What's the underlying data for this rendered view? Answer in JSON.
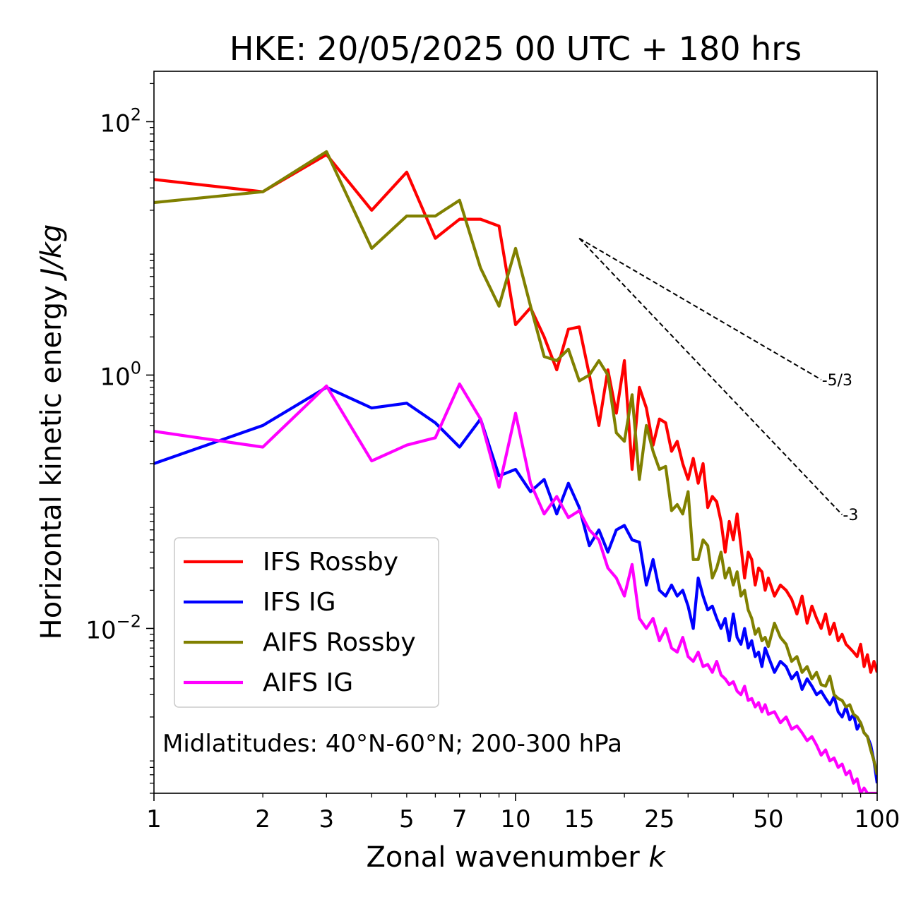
{
  "chart_data": {
    "type": "line",
    "title": "HKE: 20/05/2025 00 UTC + 180 hrs",
    "xlabel": "Zonal wavenumber ",
    "xlabel_italic": "k",
    "ylabel": "Horizontal kinetic energy ",
    "ylabel_italic": "J/kg",
    "xscale": "log",
    "yscale": "log",
    "xlim": [
      1,
      100
    ],
    "ylim": [
      0.0005,
      250
    ],
    "xticks": [
      1,
      2,
      3,
      5,
      7,
      10,
      15,
      25,
      50,
      100
    ],
    "xtick_labels": [
      "1",
      "2",
      "3",
      "5",
      "7",
      "10",
      "15",
      "25",
      "50",
      "100"
    ],
    "yticks": [
      0.01,
      1,
      100
    ],
    "ytick_labels": [
      {
        "base": "10",
        "exp": "−2"
      },
      {
        "base": "10",
        "exp": "0"
      },
      {
        "base": "10",
        "exp": "2"
      }
    ],
    "grid": false,
    "legend_placement": "lower-left",
    "annotation": "Midlatitudes: 40°N-60°N; 200-300 hPa",
    "reference_slopes": [
      {
        "label": "-5/3",
        "slope": -1.6667,
        "k_start": 15,
        "k_end": 70,
        "e_start": 12
      },
      {
        "label": "-3",
        "slope": -3,
        "k_start": 15,
        "k_end": 80,
        "e_start": 12
      }
    ],
    "series": [
      {
        "name": "IFS Rossby",
        "color": "#ff0000",
        "x": [
          1,
          2,
          3,
          4,
          5,
          6,
          7,
          8,
          9,
          10,
          11,
          12,
          13,
          14,
          15,
          16,
          17,
          18,
          19,
          20,
          21,
          22,
          23,
          24,
          25,
          26,
          27,
          28,
          29,
          30,
          31,
          32,
          33,
          34,
          35,
          36,
          37,
          38,
          39,
          40,
          41,
          42,
          43,
          44,
          45,
          46,
          47,
          48,
          49,
          50,
          52,
          54,
          56,
          58,
          60,
          62,
          64,
          66,
          68,
          70,
          72,
          74,
          76,
          78,
          80,
          82,
          84,
          86,
          88,
          90,
          92,
          94,
          96,
          98,
          100
        ],
        "values": [
          35,
          28,
          55,
          20,
          40,
          12,
          17,
          17,
          15,
          2.5,
          3.4,
          2.0,
          1.1,
          2.3,
          2.4,
          1.0,
          0.4,
          1.1,
          0.5,
          1.3,
          0.18,
          0.8,
          0.55,
          0.28,
          0.45,
          0.42,
          0.25,
          0.3,
          0.2,
          0.15,
          0.22,
          0.14,
          0.2,
          0.09,
          0.11,
          0.1,
          0.07,
          0.04,
          0.07,
          0.05,
          0.08,
          0.045,
          0.025,
          0.04,
          0.035,
          0.022,
          0.03,
          0.028,
          0.02,
          0.025,
          0.018,
          0.022,
          0.02,
          0.017,
          0.013,
          0.018,
          0.011,
          0.015,
          0.012,
          0.01,
          0.013,
          0.009,
          0.011,
          0.008,
          0.009,
          0.0075,
          0.007,
          0.0065,
          0.006,
          0.0075,
          0.005,
          0.0062,
          0.0045,
          0.0055,
          0.0045
        ]
      },
      {
        "name": "IFS IG",
        "color": "#0000ff",
        "x": [
          1,
          2,
          3,
          4,
          5,
          6,
          7,
          8,
          9,
          10,
          11,
          12,
          13,
          14,
          15,
          16,
          17,
          18,
          19,
          20,
          21,
          22,
          23,
          24,
          25,
          26,
          27,
          28,
          29,
          30,
          31,
          32,
          33,
          34,
          35,
          36,
          37,
          38,
          39,
          40,
          41,
          42,
          43,
          44,
          45,
          46,
          47,
          48,
          49,
          50,
          52,
          54,
          56,
          58,
          60,
          62,
          64,
          66,
          68,
          70,
          72,
          74,
          76,
          78,
          80,
          82,
          84,
          86,
          88,
          90,
          92,
          94,
          96,
          98,
          100
        ],
        "values": [
          0.2,
          0.4,
          0.8,
          0.55,
          0.6,
          0.42,
          0.27,
          0.45,
          0.16,
          0.18,
          0.12,
          0.15,
          0.08,
          0.14,
          0.09,
          0.045,
          0.06,
          0.04,
          0.06,
          0.065,
          0.05,
          0.048,
          0.022,
          0.035,
          0.02,
          0.018,
          0.022,
          0.018,
          0.02,
          0.015,
          0.01,
          0.025,
          0.018,
          0.014,
          0.015,
          0.012,
          0.01,
          0.012,
          0.008,
          0.013,
          0.0085,
          0.0075,
          0.01,
          0.007,
          0.008,
          0.006,
          0.0065,
          0.005,
          0.007,
          0.006,
          0.0045,
          0.0055,
          0.005,
          0.004,
          0.0045,
          0.0033,
          0.004,
          0.0035,
          0.003,
          0.0032,
          0.0028,
          0.0025,
          0.0029,
          0.0022,
          0.002,
          0.0024,
          0.0019,
          0.0021,
          0.0016,
          0.0018,
          0.0015,
          0.0014,
          0.0012,
          0.0009,
          0.0006
        ]
      },
      {
        "name": "AIFS Rossby",
        "color": "#808000",
        "x": [
          1,
          2,
          3,
          4,
          5,
          6,
          7,
          8,
          9,
          10,
          11,
          12,
          13,
          14,
          15,
          16,
          17,
          18,
          19,
          20,
          21,
          22,
          23,
          24,
          25,
          26,
          27,
          28,
          29,
          30,
          31,
          32,
          33,
          34,
          35,
          36,
          37,
          38,
          39,
          40,
          41,
          42,
          43,
          44,
          45,
          46,
          47,
          48,
          49,
          50,
          52,
          54,
          56,
          58,
          60,
          62,
          64,
          66,
          68,
          70,
          72,
          74,
          76,
          78,
          80,
          82,
          84,
          86,
          88,
          90,
          92,
          94,
          96,
          98,
          100
        ],
        "values": [
          23,
          28,
          58,
          10,
          18,
          18,
          24,
          7,
          3.5,
          10,
          3.5,
          1.4,
          1.3,
          1.6,
          0.9,
          1.0,
          1.3,
          1.0,
          0.35,
          0.3,
          0.7,
          0.15,
          0.4,
          0.25,
          0.18,
          0.19,
          0.085,
          0.095,
          0.08,
          0.12,
          0.035,
          0.035,
          0.05,
          0.045,
          0.025,
          0.03,
          0.04,
          0.025,
          0.03,
          0.022,
          0.028,
          0.018,
          0.02,
          0.014,
          0.012,
          0.009,
          0.01,
          0.008,
          0.0085,
          0.0072,
          0.011,
          0.0085,
          0.0075,
          0.0055,
          0.006,
          0.0045,
          0.005,
          0.004,
          0.0045,
          0.0036,
          0.0035,
          0.0042,
          0.003,
          0.0028,
          0.0027,
          0.0024,
          0.0025,
          0.0021,
          0.002,
          0.0018,
          0.0015,
          0.0014,
          0.0011,
          0.0009,
          0.0007
        ]
      },
      {
        "name": "AIFS IG",
        "color": "#ff00ff",
        "x": [
          1,
          2,
          3,
          4,
          5,
          6,
          7,
          8,
          9,
          10,
          11,
          12,
          13,
          14,
          15,
          16,
          17,
          18,
          19,
          20,
          21,
          22,
          23,
          24,
          25,
          26,
          27,
          28,
          29,
          30,
          31,
          32,
          33,
          34,
          35,
          36,
          37,
          38,
          39,
          40,
          41,
          42,
          43,
          44,
          45,
          46,
          47,
          48,
          49,
          50,
          52,
          54,
          56,
          58,
          60,
          62,
          64,
          66,
          68,
          70,
          72,
          74,
          76,
          78,
          80,
          82,
          84,
          86,
          88,
          90,
          92,
          94,
          96,
          98,
          100
        ],
        "values": [
          0.36,
          0.27,
          0.82,
          0.21,
          0.28,
          0.32,
          0.85,
          0.45,
          0.13,
          0.5,
          0.14,
          0.08,
          0.11,
          0.075,
          0.085,
          0.06,
          0.05,
          0.03,
          0.025,
          0.018,
          0.032,
          0.012,
          0.01,
          0.012,
          0.008,
          0.01,
          0.007,
          0.0065,
          0.0085,
          0.006,
          0.0055,
          0.0065,
          0.005,
          0.0052,
          0.0045,
          0.0055,
          0.0043,
          0.004,
          0.0036,
          0.0038,
          0.0032,
          0.003,
          0.0035,
          0.0027,
          0.0028,
          0.0024,
          0.0026,
          0.0022,
          0.0025,
          0.0021,
          0.0022,
          0.0018,
          0.002,
          0.0016,
          0.0017,
          0.0015,
          0.0013,
          0.0014,
          0.0012,
          0.001,
          0.0011,
          0.0009,
          0.00095,
          0.0008,
          0.00085,
          0.0007,
          0.00075,
          0.0006,
          0.00065,
          0.0005,
          0.00055,
          0.0005,
          0.0005,
          0.0005,
          0.0005
        ]
      }
    ]
  }
}
